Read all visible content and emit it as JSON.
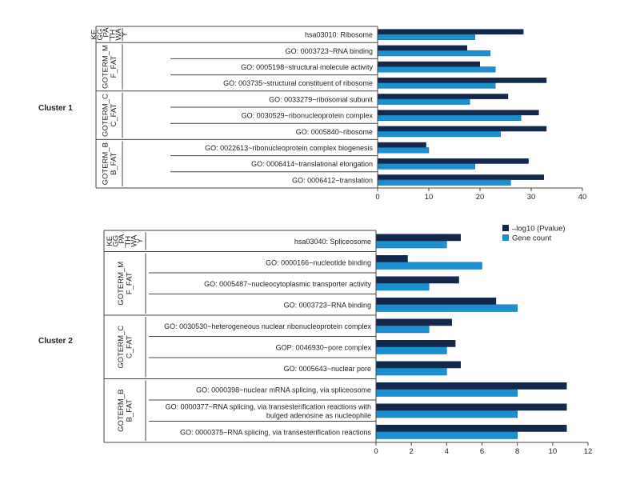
{
  "colors": {
    "pvalue": "#13294b",
    "gene_count": "#1b8fd0",
    "line": "#444444"
  },
  "chart_data": [
    {
      "type": "bar",
      "orientation": "horizontal",
      "cluster": "Cluster 1",
      "xlim": [
        0,
        40
      ],
      "xticks": [
        0,
        10,
        20,
        30,
        40
      ],
      "groups": [
        {
          "name": "KEGG_PATHWAY",
          "lines": [
            "KE",
            "GG",
            "_PA",
            "TH",
            "WA",
            "Y"
          ],
          "start": 0,
          "count": 1
        },
        {
          "name": "GOTERM_MF_FAT",
          "lines": [
            "GOTERM_M",
            "F_FAT"
          ],
          "start": 1,
          "count": 3
        },
        {
          "name": "GOTERM_CC_FAT",
          "lines": [
            "GOTERM_C",
            "C_FAT"
          ],
          "start": 4,
          "count": 3
        },
        {
          "name": "GOTERM_BB_FAT",
          "lines": [
            "GOTERM_B",
            "B_FAT"
          ],
          "start": 7,
          "count": 3
        }
      ],
      "categories": [
        [
          "hsa03010: Ribosome"
        ],
        [
          "GO: 0003723~RNA binding"
        ],
        [
          "GO: 0005198~structural molecule activity"
        ],
        [
          "GO: 003735~structural constituent of ribosome"
        ],
        [
          "GO: 0033279~ribosomal subunit"
        ],
        [
          "GO: 0030529~ribonucleoprotein complex"
        ],
        [
          "GO: 0005840~ribosome"
        ],
        [
          "GO: 0022613~ribonucleoprotein complex biogenesis"
        ],
        [
          "GO: 0006414~translational elongation"
        ],
        [
          "GO: 0006412~translation"
        ]
      ],
      "series": [
        {
          "name": "–log10 (Pvalue)",
          "values": [
            28.5,
            17.5,
            20,
            33,
            25.5,
            31.5,
            33,
            9.5,
            29.5,
            32.5
          ]
        },
        {
          "name": "Gene count",
          "values": [
            19,
            22,
            23,
            23,
            18,
            28,
            24,
            10,
            19,
            26
          ]
        }
      ]
    },
    {
      "type": "bar",
      "orientation": "horizontal",
      "cluster": "Cluster 2",
      "xlim": [
        0,
        12
      ],
      "xticks": [
        0,
        2,
        4,
        6,
        8,
        10,
        12
      ],
      "groups": [
        {
          "name": "KEGG_PATHWAY",
          "lines": [
            "KE",
            "GG",
            "_PA",
            "TH",
            "WA",
            "Y"
          ],
          "start": 0,
          "count": 1
        },
        {
          "name": "GOTERM_MF_FAT",
          "lines": [
            "GOTERM_M",
            "F_FAT"
          ],
          "start": 1,
          "count": 3
        },
        {
          "name": "GOTERM_CC_FAT",
          "lines": [
            "GOTERM_C",
            "C_FAT"
          ],
          "start": 4,
          "count": 3
        },
        {
          "name": "GOTERM_BB_FAT",
          "lines": [
            "GOTERM_B",
            "B_FAT"
          ],
          "start": 7,
          "count": 3
        }
      ],
      "categories": [
        [
          "hsa03040: Spliceosome"
        ],
        [
          "GO: 0000166~nucleotide binding"
        ],
        [
          "GO: 0005487~nucleocytoplasmic transporter activity"
        ],
        [
          "GO: 0003723~RNA binding"
        ],
        [
          "GO: 0030530~heterogeneous nuclear ribonucleoprotein complex"
        ],
        [
          "GOP: 0046930~pore complex"
        ],
        [
          "GO: 0005643~nuclear pore"
        ],
        [
          "GO: 0000398~nuclear mRNA splicing, via spliceosome"
        ],
        [
          "GO: 0000377~RNA splicing, via transesterification reactions with",
          "bulged adenosine as nucleophile"
        ],
        [
          "GO: 0000375~RNA splicing, via transesterification reactions"
        ]
      ],
      "series": [
        {
          "name": "–log10 (Pvalue)",
          "values": [
            4.8,
            1.8,
            4.7,
            6.8,
            4.3,
            4.5,
            4.8,
            10.8,
            10.8,
            10.8
          ]
        },
        {
          "name": "Gene count",
          "values": [
            4,
            6,
            3,
            8,
            3,
            4,
            4,
            8,
            8,
            8
          ]
        }
      ]
    }
  ],
  "legend": {
    "items": [
      "–log10 (Pvalue)",
      "Gene count"
    ]
  }
}
